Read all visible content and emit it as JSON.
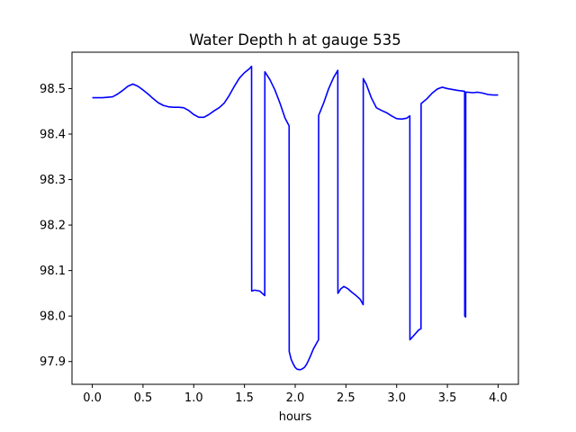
{
  "chart_data": {
    "type": "line",
    "title": "Water Depth h at gauge 535",
    "xlabel": "hours",
    "ylabel": "",
    "xlim": [
      -0.2,
      4.2
    ],
    "ylim": [
      97.85,
      98.58
    ],
    "xticks": [
      0.0,
      0.5,
      1.0,
      1.5,
      2.0,
      2.5,
      3.0,
      3.5,
      4.0
    ],
    "xtick_labels": [
      "0.0",
      "0.5",
      "1.0",
      "1.5",
      "2.0",
      "2.5",
      "3.0",
      "3.5",
      "4.0"
    ],
    "yticks": [
      97.9,
      98.0,
      98.1,
      98.2,
      98.3,
      98.4,
      98.5
    ],
    "ytick_labels": [
      "97.9",
      "98.0",
      "98.1",
      "98.2",
      "98.3",
      "98.4",
      "98.5"
    ],
    "grid": false,
    "color": "#0000ff",
    "series": [
      {
        "x": [
          0.0,
          0.1,
          0.2,
          0.25,
          0.3,
          0.35,
          0.4,
          0.45,
          0.5,
          0.55,
          0.6,
          0.65,
          0.7,
          0.75,
          0.8,
          0.85,
          0.9,
          0.95,
          1.0,
          1.05,
          1.1,
          1.15,
          1.2,
          1.25,
          1.3,
          1.35,
          1.4,
          1.45,
          1.5,
          1.55,
          1.57,
          1.571,
          1.6,
          1.65,
          1.7,
          1.701,
          1.75,
          1.8,
          1.85,
          1.9,
          1.94,
          1.941,
          1.96,
          1.98,
          2.0,
          2.02,
          2.05,
          2.07,
          2.09,
          2.11,
          2.13,
          2.15,
          2.18,
          2.21,
          2.23,
          2.231,
          2.28,
          2.33,
          2.38,
          2.42,
          2.421,
          2.45,
          2.48,
          2.52,
          2.56,
          2.6,
          2.64,
          2.67,
          2.671,
          2.7,
          2.75,
          2.8,
          2.85,
          2.9,
          2.95,
          3.0,
          3.05,
          3.1,
          3.13,
          3.131,
          3.16,
          3.22,
          3.24,
          3.241,
          3.3,
          3.35,
          3.4,
          3.45,
          3.5,
          3.55,
          3.6,
          3.67,
          3.671,
          3.68,
          3.681,
          3.7,
          3.75,
          3.8,
          3.85,
          3.9,
          3.95,
          4.0
        ],
        "values": [
          98.48,
          98.48,
          98.482,
          98.488,
          98.496,
          98.505,
          98.51,
          98.505,
          98.497,
          98.488,
          98.478,
          98.469,
          98.463,
          98.46,
          98.459,
          98.459,
          98.458,
          98.452,
          98.443,
          98.437,
          98.437,
          98.443,
          98.451,
          98.458,
          98.468,
          98.485,
          98.505,
          98.523,
          98.535,
          98.544,
          98.549,
          98.055,
          98.057,
          98.055,
          98.045,
          98.537,
          98.52,
          98.497,
          98.468,
          98.435,
          98.418,
          97.922,
          97.905,
          97.895,
          97.887,
          97.883,
          97.882,
          97.884,
          97.887,
          97.893,
          97.902,
          97.912,
          97.928,
          97.94,
          97.948,
          98.441,
          98.468,
          98.5,
          98.525,
          98.54,
          98.05,
          98.06,
          98.065,
          98.06,
          98.052,
          98.045,
          98.037,
          98.025,
          98.522,
          98.51,
          98.48,
          98.458,
          98.452,
          98.447,
          98.44,
          98.434,
          98.433,
          98.435,
          98.44,
          97.948,
          97.955,
          97.97,
          97.972,
          98.467,
          98.478,
          98.49,
          98.499,
          98.503,
          98.5,
          98.498,
          98.496,
          98.494,
          98.0,
          97.998,
          98.492,
          98.492,
          98.491,
          98.492,
          98.49,
          98.487,
          98.486,
          98.486
        ]
      }
    ]
  }
}
